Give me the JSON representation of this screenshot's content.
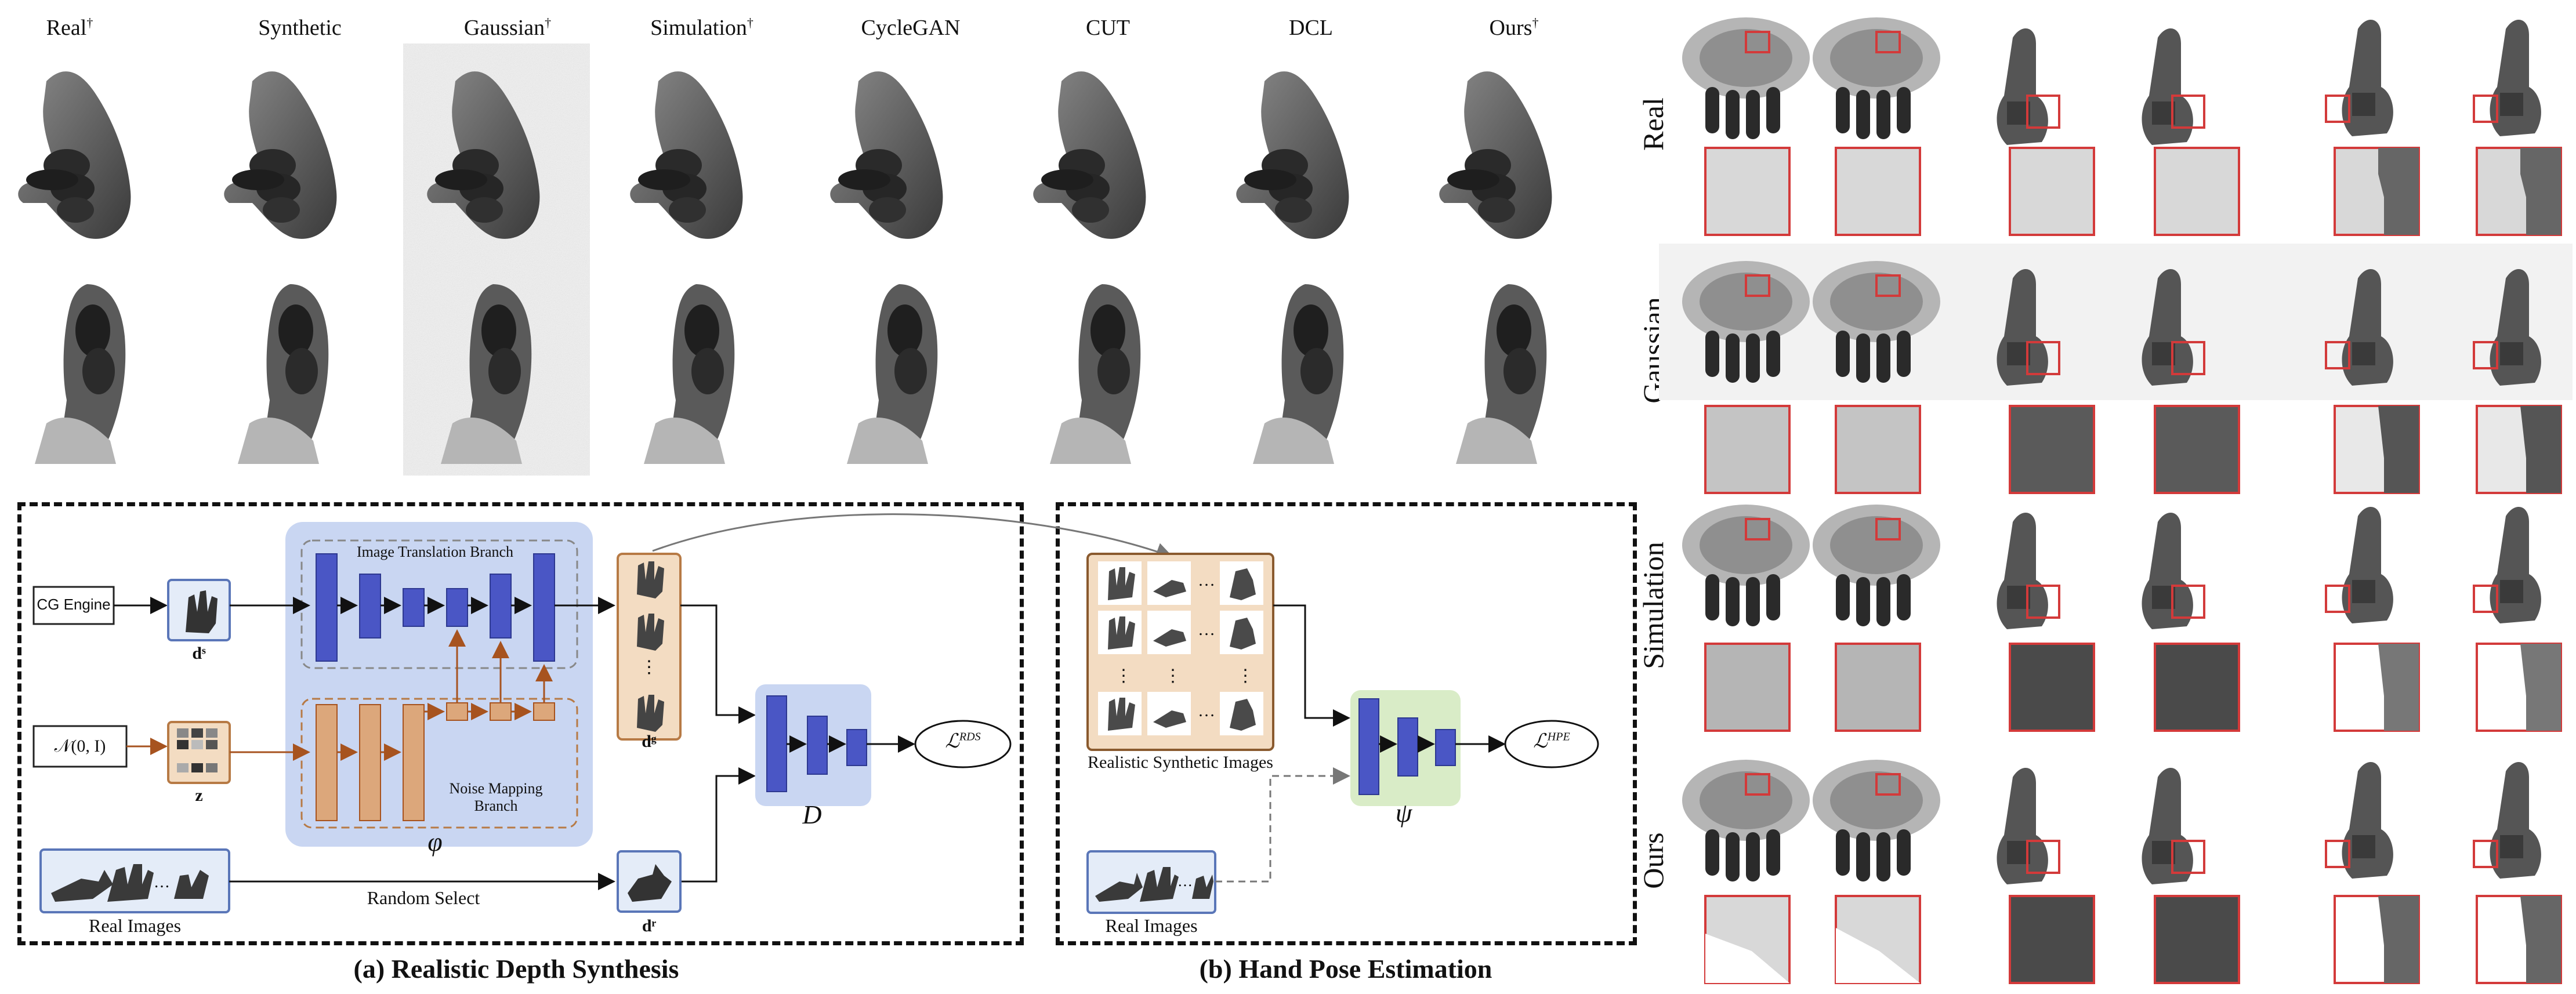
{
  "top_columns": [
    {
      "label": "Real",
      "sup": "†"
    },
    {
      "label": "Synthetic",
      "sup": ""
    },
    {
      "label": "Gaussian",
      "sup": "†"
    },
    {
      "label": "Simulation",
      "sup": "†"
    },
    {
      "label": "CycleGAN",
      "sup": ""
    },
    {
      "label": "CUT",
      "sup": ""
    },
    {
      "label": "DCL",
      "sup": ""
    },
    {
      "label": "Ours",
      "sup": "†"
    }
  ],
  "diagram_a": {
    "cg_engine": "CG Engine",
    "noise_dist": "𝒩(0, I)",
    "d_s": "dˢ",
    "z": "z",
    "itb_title": "Image Translation Branch",
    "nmb_title": "Noise Mapping Branch",
    "phi": "φ",
    "d_g": "dᵍ",
    "d_r": "dʳ",
    "D": "D",
    "loss": "ℒ",
    "loss_sup": "RDS",
    "real_images": "Real Images",
    "random_select": "Random Select",
    "caption": "(a) Realistic Depth Synthesis"
  },
  "diagram_b": {
    "realistic_synth": "Realistic Synthetic Images",
    "real_images": "Real Images",
    "psi": "ψ",
    "loss": "ℒ",
    "loss_sup": "HPE",
    "caption": "(b) Hand Pose Estimation"
  },
  "right_rows": [
    "Real",
    "Gaussian",
    "Simulation",
    "Ours"
  ],
  "colors": {
    "blue_block": "#4a56c5",
    "orange_block": "#dca77b",
    "phi_bg": "#c9d6f2",
    "D_bg": "#c9d6f2",
    "psi_bg": "#d9ecc7",
    "zoom_border": "#d33a3a",
    "thumb_frame_orange": "#b77a45",
    "thumb_frame_blue": "#5a76b8"
  }
}
